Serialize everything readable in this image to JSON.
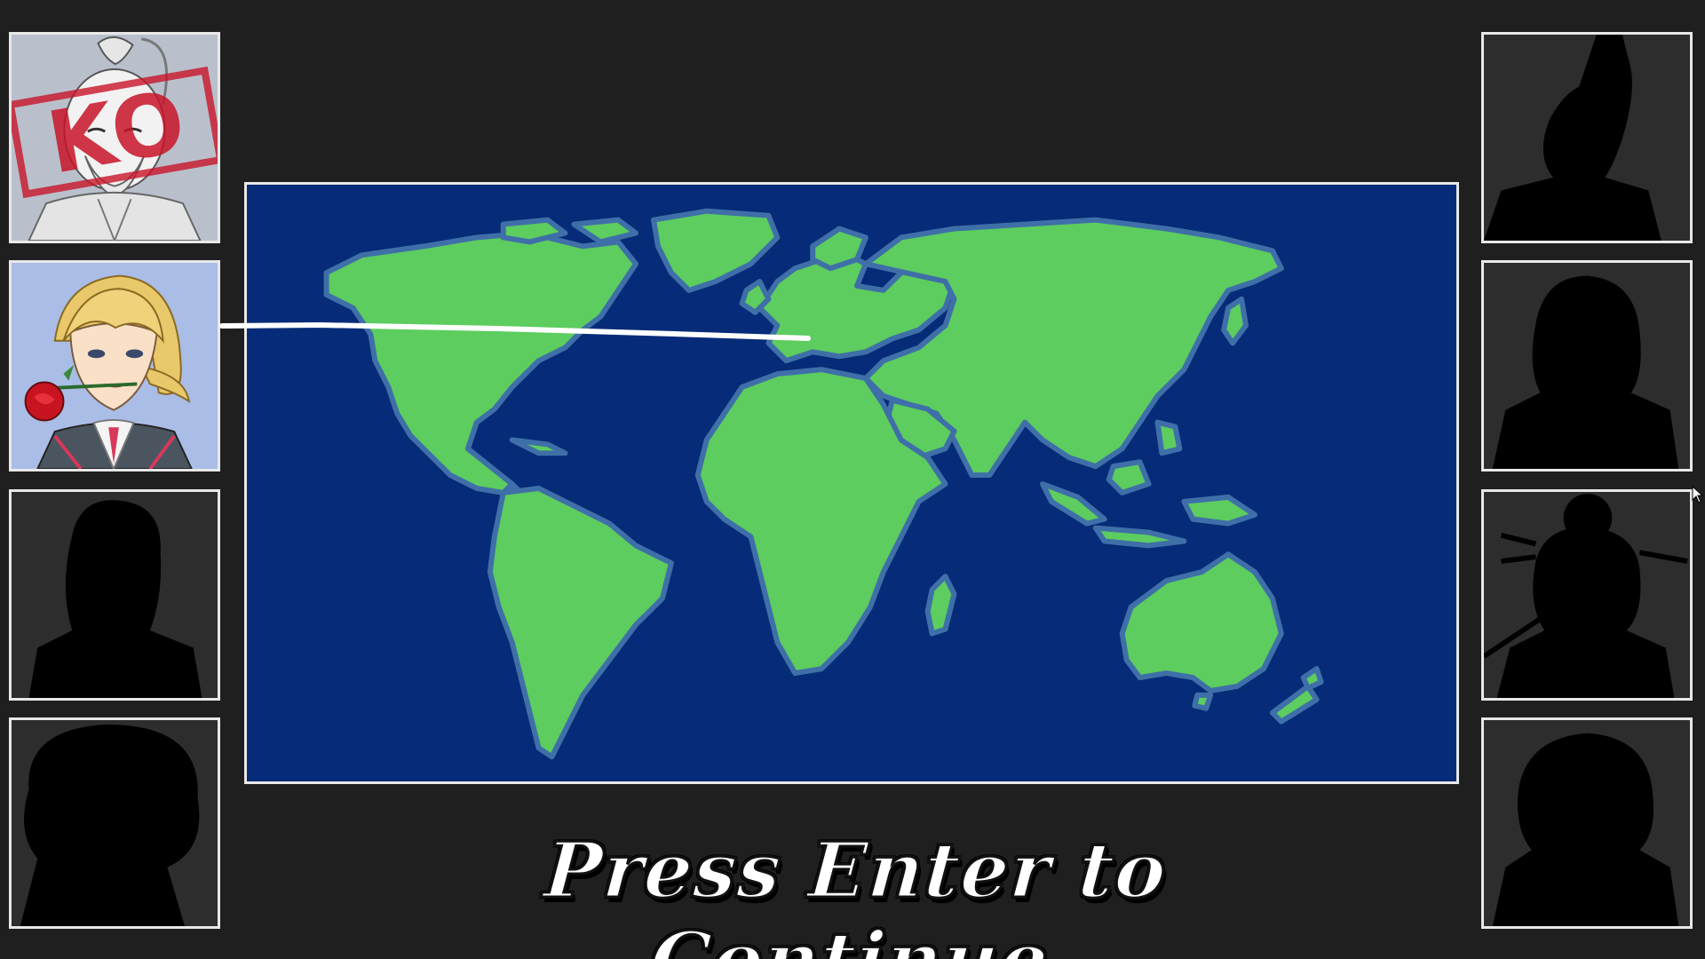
{
  "screen": "world-map-continue",
  "prompt": {
    "continue_label": "Press Enter to Continue"
  },
  "left_roster": [
    {
      "state": "defeated",
      "ko_label": "KO"
    },
    {
      "state": "selected"
    },
    {
      "state": "locked"
    },
    {
      "state": "locked"
    }
  ],
  "right_roster": [
    {
      "state": "locked"
    },
    {
      "state": "locked"
    },
    {
      "state": "locked"
    },
    {
      "state": "locked"
    }
  ],
  "colors": {
    "background": "#1f1f1f",
    "ocean": "#062b78",
    "land": "#5ccd5e",
    "land_outline": "#3f6fa8",
    "frame": "#e8e8e8",
    "ko_red": "#c81428",
    "route": "#ffffff"
  }
}
